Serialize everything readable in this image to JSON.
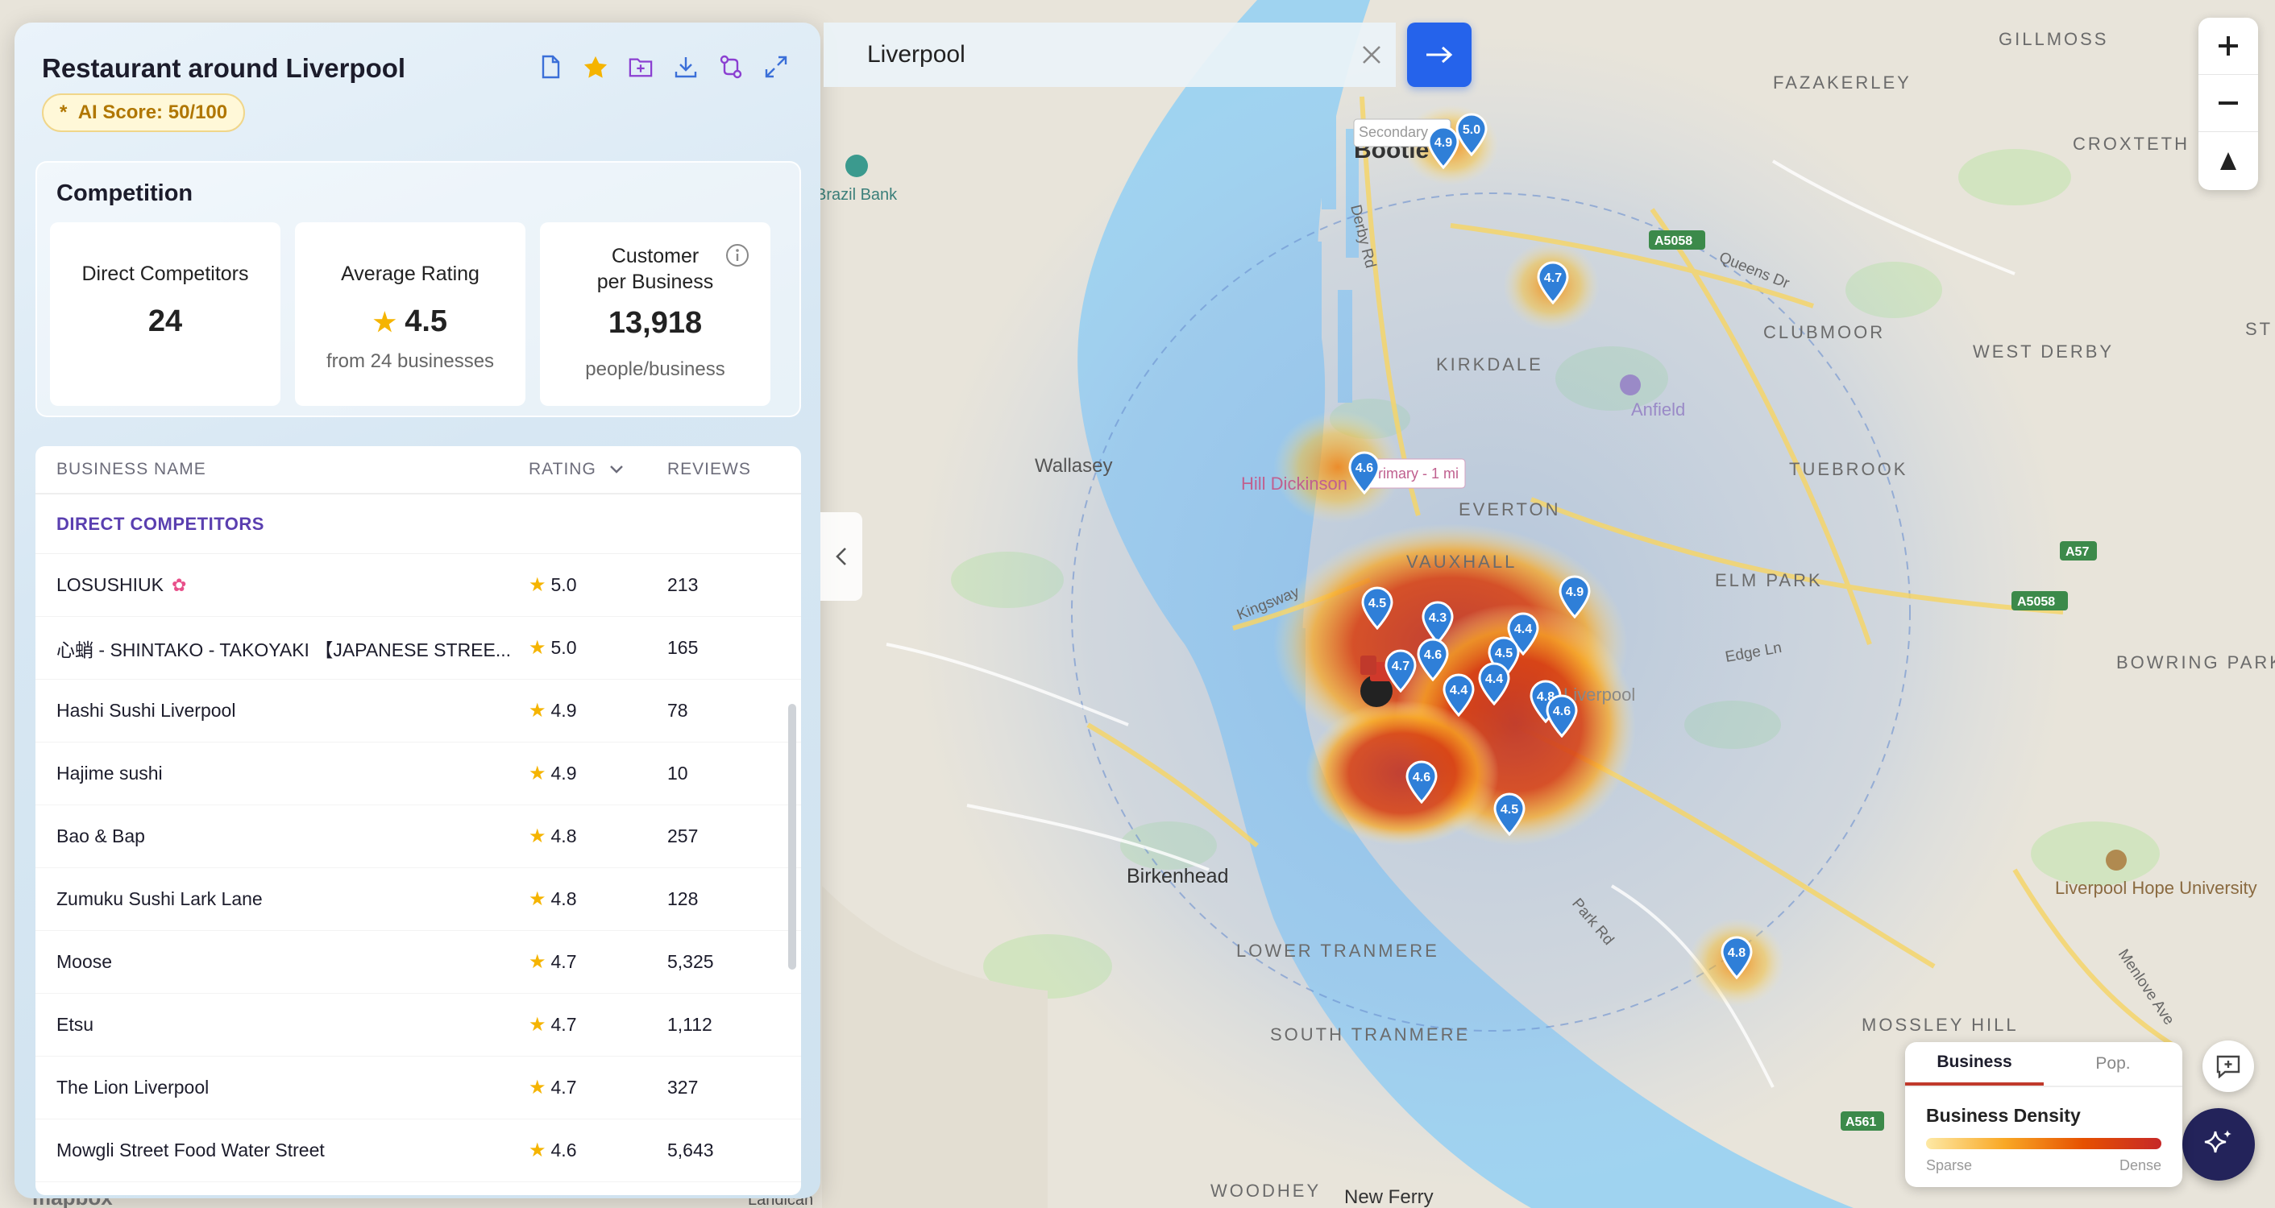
{
  "panel": {
    "title": "Restaurant around Liverpool",
    "ai_score": "AI Score: 50/100",
    "ai_score_prefix": "*"
  },
  "competition": {
    "title": "Competition",
    "direct_competitors": {
      "label": "Direct Competitors",
      "value": "24"
    },
    "average_rating": {
      "label": "Average Rating",
      "value": "4.5",
      "sub": "from 24 businesses"
    },
    "customer_per_business": {
      "label_line1": "Customer",
      "label_line2": "per Business",
      "value": "13,918",
      "sub": "people/business"
    }
  },
  "table": {
    "headers": {
      "name": "BUSINESS NAME",
      "rating": "RATING",
      "reviews": "REVIEWS"
    },
    "section": "DIRECT COMPETITORS",
    "rows": [
      {
        "name": "LOSUSHIUK",
        "rating": "5.0",
        "reviews": "213"
      },
      {
        "name": "心蛸 - SHINTAKO - TAKOYAKI 【JAPANESE STREE...",
        "rating": "5.0",
        "reviews": "165"
      },
      {
        "name": "Hashi Sushi Liverpool",
        "rating": "4.9",
        "reviews": "78"
      },
      {
        "name": "Hajime sushi",
        "rating": "4.9",
        "reviews": "10"
      },
      {
        "name": "Bao & Bap",
        "rating": "4.8",
        "reviews": "257"
      },
      {
        "name": "Zumuku Sushi Lark Lane",
        "rating": "4.8",
        "reviews": "128"
      },
      {
        "name": "Moose",
        "rating": "4.7",
        "reviews": "5,325"
      },
      {
        "name": "Etsu",
        "rating": "4.7",
        "reviews": "1,112"
      },
      {
        "name": "The Lion Liverpool",
        "rating": "4.7",
        "reviews": "327"
      },
      {
        "name": "Mowgli Street Food Water Street",
        "rating": "4.6",
        "reviews": "5,643"
      }
    ]
  },
  "search": {
    "value": "Liverpool"
  },
  "legend": {
    "tab_business": "Business",
    "tab_pop": "Pop.",
    "title": "Business Density",
    "low": "Sparse",
    "high": "Dense"
  },
  "map_labels": {
    "bootle": "Bootle",
    "secondary": "Secondary",
    "primary": "Primary - 1 mi",
    "kirkdale": "KIRKDALE",
    "everton": "EVERTON",
    "vauxhall": "VAUXHALL",
    "wallasey": "Wallasey",
    "birkenhead": "Birkenhead",
    "fazakerley": "FAZAKERLEY",
    "gillmoss": "GILLMOSS",
    "croxteth": "CROXTETH",
    "clubmoor": "CLUBMOOR",
    "west_derby": "WEST DERBY",
    "tuebrook": "TUEBROOK",
    "elm_park": "ELM PARK",
    "anfield": "Anfield",
    "lower_tranmere": "LOWER TRANMERE",
    "south_tranmere": "SOUTH TRANMERE",
    "mossley": "MOSSLEY HILL",
    "woodhey": "WOODHEY",
    "new_ferry": "New Ferry",
    "hope_uni": "Liverpool Hope University",
    "hill_dickinson": "Hill Dickinson",
    "derby_rd": "Derby Rd",
    "queens_dr": "Queens Dr",
    "kingsway": "Kingsway",
    "edge_ln": "Edge Ln",
    "park_rd": "Park Rd",
    "menlove": "Menlove Ave",
    "brazil_bank": "Brazil Bank",
    "a5058": "A5058",
    "a57": "A57",
    "a5058b": "A5058",
    "a561": "A561",
    "liverpool": "Liverpool",
    "mapbox": "mapbox",
    "landican": "Landican",
    "bowring": "BOWRING PARK",
    "st": "ST"
  },
  "pins": [
    {
      "rating": "5.0"
    },
    {
      "rating": "4.9"
    },
    {
      "rating": "4.7"
    },
    {
      "rating": "4.6"
    },
    {
      "rating": "4.5"
    },
    {
      "rating": "4.3"
    },
    {
      "rating": "4.4"
    },
    {
      "rating": "4.9"
    },
    {
      "rating": "4.6"
    },
    {
      "rating": "4.7"
    },
    {
      "rating": "4.5"
    },
    {
      "rating": "4.4"
    },
    {
      "rating": "4.4"
    },
    {
      "rating": "4.8"
    },
    {
      "rating": "4.6"
    },
    {
      "rating": "4.6"
    },
    {
      "rating": "4.5"
    },
    {
      "rating": "4.8"
    }
  ]
}
